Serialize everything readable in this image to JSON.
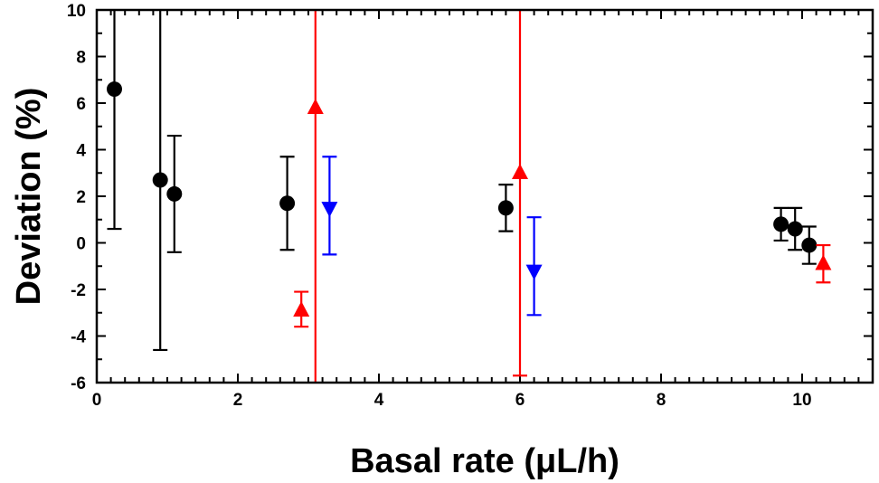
{
  "chart_data": {
    "type": "scatter",
    "title": "",
    "xlabel": "Basal rate (μL/h)",
    "ylabel": "Deviation (%)",
    "xlim": [
      0,
      11
    ],
    "ylim": [
      -6,
      10
    ],
    "x_ticks": [
      0,
      2,
      4,
      6,
      8,
      10
    ],
    "y_ticks": [
      -6,
      -4,
      -2,
      0,
      2,
      4,
      6,
      8,
      10
    ],
    "x_minor_step": 0.2,
    "y_minor_step": 1,
    "grid": false,
    "series": [
      {
        "marker": "circle",
        "color": "#000000",
        "points": [
          {
            "x": 0.25,
            "y": 6.6,
            "lo": 0.6,
            "hi": 10.0
          },
          {
            "x": 0.9,
            "y": 2.7,
            "lo": -4.6,
            "hi": 10.0
          },
          {
            "x": 1.1,
            "y": 2.1,
            "lo": -0.4,
            "hi": 4.6
          },
          {
            "x": 2.7,
            "y": 1.7,
            "lo": -0.3,
            "hi": 3.7
          },
          {
            "x": 5.8,
            "y": 1.5,
            "lo": 0.5,
            "hi": 2.5
          },
          {
            "x": 9.7,
            "y": 0.8,
            "lo": 0.1,
            "hi": 1.5
          },
          {
            "x": 9.9,
            "y": 0.6,
            "lo": -0.3,
            "hi": 1.5
          },
          {
            "x": 10.1,
            "y": -0.1,
            "lo": -0.9,
            "hi": 0.7
          }
        ]
      },
      {
        "marker": "triangle-up",
        "color": "#ff0000",
        "points": [
          {
            "x": 2.9,
            "y": -2.9,
            "lo": -3.6,
            "hi": -2.1
          },
          {
            "x": 3.1,
            "y": 5.8,
            "lo": -6.0,
            "hi": 10.0
          },
          {
            "x": 6.0,
            "y": 3.0,
            "lo": -5.7,
            "hi": 10.0
          },
          {
            "x": 10.3,
            "y": -0.9,
            "lo": -1.7,
            "hi": -0.1
          }
        ]
      },
      {
        "marker": "triangle-down",
        "color": "#0000ff",
        "points": [
          {
            "x": 3.3,
            "y": 1.5,
            "lo": -0.5,
            "hi": 3.7
          },
          {
            "x": 6.2,
            "y": -1.2,
            "lo": -3.1,
            "hi": 1.1
          }
        ]
      }
    ]
  }
}
